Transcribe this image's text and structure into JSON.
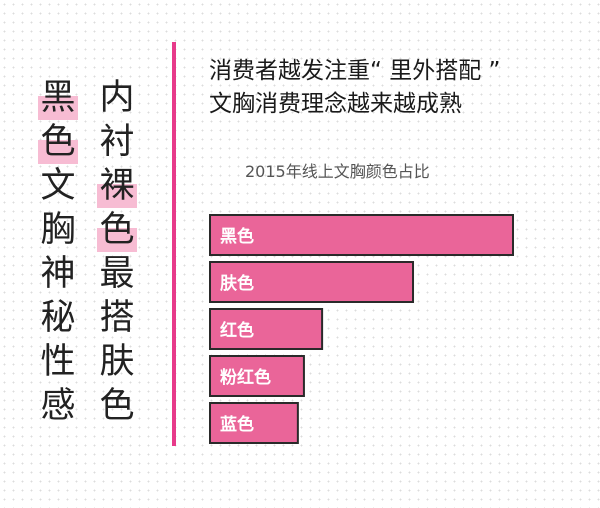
{
  "left_column": [
    "黑",
    "色",
    "文",
    "胸",
    "神",
    "秘",
    "性",
    "感"
  ],
  "right_column": [
    "内",
    "衬",
    "裸",
    "色",
    "最",
    "搭",
    "肤",
    "色"
  ],
  "headline": [
    "消费者越发注重“ 里外搭配 ”",
    "文胸消费理念越来越成熟"
  ],
  "colors": {
    "bar": "#ea6599",
    "bar_stroke": "#2a2a2a",
    "accent": "#e73a8a",
    "highlight": "#f7bcd3"
  },
  "chart_data": {
    "type": "bar",
    "orientation": "horizontal",
    "title": "2015年线上文胸颜色占比",
    "categories": [
      "黑色",
      "肤色",
      "红色",
      "粉红色",
      "蓝色"
    ],
    "values": [
      100,
      67,
      37,
      31,
      29
    ],
    "xlim": [
      0,
      100
    ]
  }
}
